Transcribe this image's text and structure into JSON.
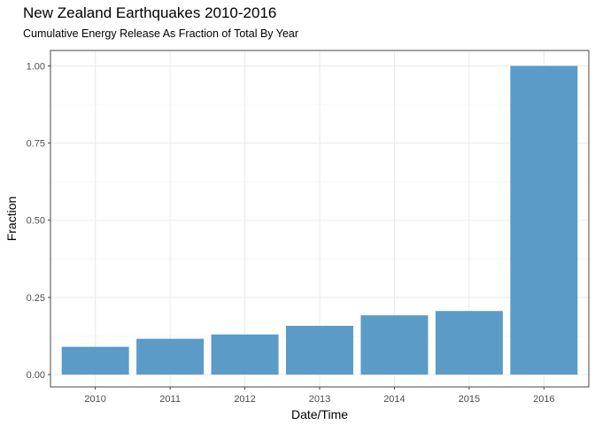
{
  "chart_data": {
    "type": "bar",
    "title": "New Zealand Earthquakes 2010-2016",
    "subtitle": "Cumulative Energy Release As Fraction of Total By Year",
    "xlabel": "Date/Time",
    "ylabel": "Fraction",
    "categories": [
      "2010",
      "2011",
      "2012",
      "2013",
      "2014",
      "2015",
      "2016"
    ],
    "values": [
      0.09,
      0.116,
      0.13,
      0.158,
      0.192,
      0.206,
      1.0
    ],
    "ylim": [
      -0.04,
      1.05
    ],
    "yticks": [
      0.0,
      0.25,
      0.5,
      0.75,
      1.0
    ],
    "ytick_labels": [
      "0.00",
      "0.25",
      "0.50",
      "0.75",
      "1.00"
    ],
    "grid": true,
    "legend": "none",
    "colors": {
      "bar": "#5b9bc8",
      "grid": "#ebebeb",
      "border": "#333333"
    }
  }
}
